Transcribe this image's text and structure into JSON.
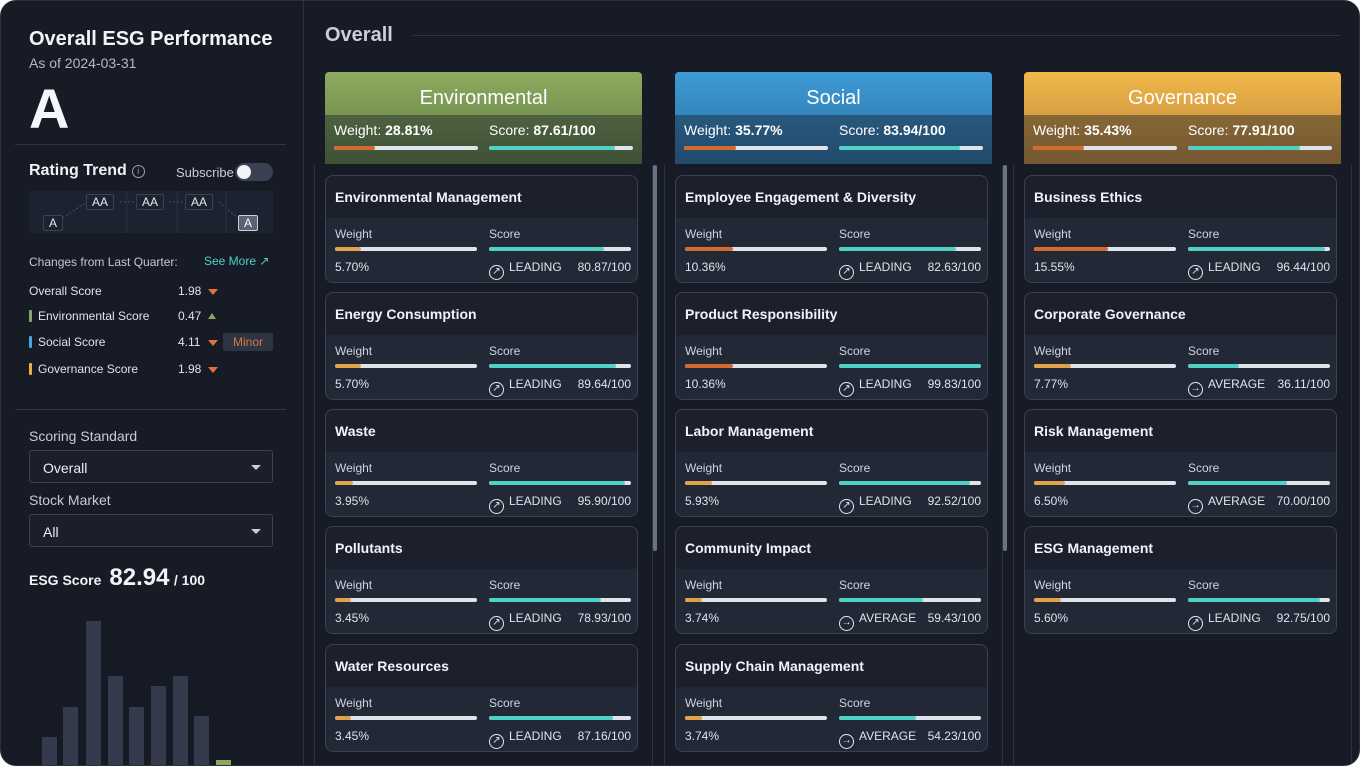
{
  "sidebar": {
    "title": "Overall ESG Performance",
    "as_of": "As of 2024-03-31",
    "rating": "A",
    "rating_trend_title": "Rating Trend",
    "info_glyph": "i",
    "subscribe_label": "Subscribe",
    "subscribe_on": false,
    "trend": [
      "A",
      "AA",
      "AA",
      "AA",
      "A"
    ],
    "changes_label": "Changes from Last Quarter:",
    "see_more": "See More ↗",
    "changes": [
      {
        "label": "Overall Score",
        "value": "1.98",
        "direction": "down",
        "color": ""
      },
      {
        "label": "Environmental Score",
        "value": "0.47",
        "direction": "up",
        "color": "#86a864"
      },
      {
        "label": "Social Score",
        "value": "4.11",
        "direction": "down",
        "color": "#4aa8d8",
        "badge": "Minor"
      },
      {
        "label": "Governance Score",
        "value": "1.98",
        "direction": "down",
        "color": "#f0b041"
      }
    ],
    "scoring_standard_label": "Scoring Standard",
    "scoring_standard_value": "Overall",
    "stock_market_label": "Stock Market",
    "stock_market_value": "All",
    "esg_score_label": "ESG Score",
    "esg_score_value": "82.94",
    "esg_score_max": "/ 100",
    "histogram": [
      0.18,
      0.36,
      0.88,
      0.55,
      0.36,
      0.49,
      0.55,
      0.31,
      0.04
    ]
  },
  "main": {
    "title": "Overall",
    "weight_label": "Weight:",
    "score_label": "Score:",
    "card_weight_label": "Weight",
    "card_score_label": "Score",
    "columns": [
      {
        "name": "Environmental",
        "weight": "28.81%",
        "score": "87.61/100",
        "weight_frac": 0.2881,
        "score_frac": 0.8761,
        "color_top": "#8eab5f",
        "color_bottom": "#5d7a43",
        "show_scroll": true,
        "cards": [
          {
            "title": "Environmental Management",
            "weight": "5.70%",
            "status": "LEADING",
            "score": "80.87/100",
            "weight_frac": 0.18,
            "score_frac": 0.8087
          },
          {
            "title": "Energy Consumption",
            "weight": "5.70%",
            "status": "LEADING",
            "score": "89.64/100",
            "weight_frac": 0.18,
            "score_frac": 0.8964
          },
          {
            "title": "Waste",
            "weight": "3.95%",
            "status": "LEADING",
            "score": "95.90/100",
            "weight_frac": 0.13,
            "score_frac": 0.959
          },
          {
            "title": "Pollutants",
            "weight": "3.45%",
            "status": "LEADING",
            "score": "78.93/100",
            "weight_frac": 0.11,
            "score_frac": 0.7893
          },
          {
            "title": "Water Resources",
            "weight": "3.45%",
            "status": "LEADING",
            "score": "87.16/100",
            "weight_frac": 0.11,
            "score_frac": 0.8716
          }
        ]
      },
      {
        "name": "Social",
        "weight": "35.77%",
        "score": "83.94/100",
        "weight_frac": 0.3577,
        "score_frac": 0.8394,
        "color_top": "#3f9bd6",
        "color_bottom": "#2b6d9e",
        "show_scroll": true,
        "cards": [
          {
            "title": "Employee Engagement & Diversity",
            "weight": "10.36%",
            "status": "LEADING",
            "score": "82.63/100",
            "weight_frac": 0.34,
            "score_frac": 0.8263
          },
          {
            "title": "Product Responsibility",
            "weight": "10.36%",
            "status": "LEADING",
            "score": "99.83/100",
            "weight_frac": 0.34,
            "score_frac": 0.9983
          },
          {
            "title": "Labor Management",
            "weight": "5.93%",
            "status": "LEADING",
            "score": "92.52/100",
            "weight_frac": 0.19,
            "score_frac": 0.9252
          },
          {
            "title": "Community Impact",
            "weight": "3.74%",
            "status": "AVERAGE",
            "score": "59.43/100",
            "weight_frac": 0.12,
            "score_frac": 0.5943
          },
          {
            "title": "Supply Chain Management",
            "weight": "3.74%",
            "status": "AVERAGE",
            "score": "54.23/100",
            "weight_frac": 0.12,
            "score_frac": 0.5423
          }
        ]
      },
      {
        "name": "Governance",
        "weight": "35.43%",
        "score": "77.91/100",
        "weight_frac": 0.3543,
        "score_frac": 0.7791,
        "color_top": "#f2b84a",
        "color_bottom": "#b9843a",
        "show_scroll": false,
        "cards": [
          {
            "title": "Business Ethics",
            "weight": "15.55%",
            "status": "LEADING",
            "score": "96.44/100",
            "weight_frac": 0.52,
            "score_frac": 0.9644
          },
          {
            "title": "Corporate Governance",
            "weight": "7.77%",
            "status": "AVERAGE",
            "score": "36.11/100",
            "weight_frac": 0.26,
            "score_frac": 0.3611
          },
          {
            "title": "Risk Management",
            "weight": "6.50%",
            "status": "AVERAGE",
            "score": "70.00/100",
            "weight_frac": 0.22,
            "score_frac": 0.7
          },
          {
            "title": "ESG Management",
            "weight": "5.60%",
            "status": "LEADING",
            "score": "92.75/100",
            "weight_frac": 0.19,
            "score_frac": 0.9275
          }
        ]
      }
    ]
  },
  "colors": {
    "weight_fill_high": "#d46a2e",
    "weight_fill_low": "#e0a24a",
    "score_fill": "#4fd1c5"
  }
}
